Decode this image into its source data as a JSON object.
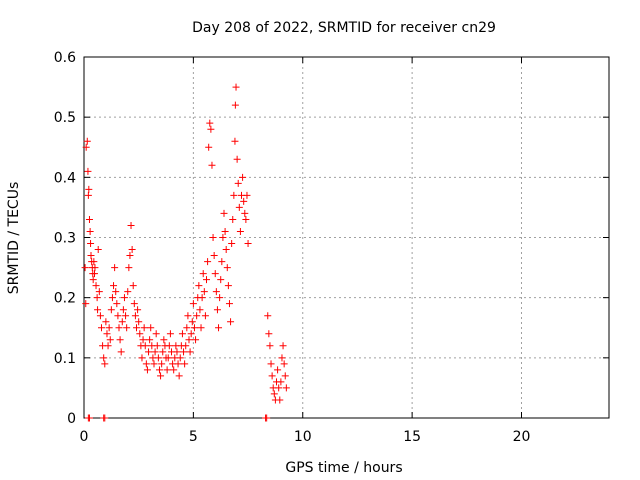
{
  "chart_data": {
    "type": "scatter",
    "title": "Day 208 of 2022, SRMTID for receiver cn29",
    "xlabel": "GPS time / hours",
    "ylabel": "SRMTID / TECUs",
    "xlim": [
      0,
      24
    ],
    "ylim": [
      0,
      0.6
    ],
    "x_ticks": [
      0,
      5,
      10,
      15,
      20
    ],
    "y_ticks": [
      0,
      0.1,
      0.2,
      0.3,
      0.4,
      0.5,
      0.6
    ],
    "x_tick_labels": [
      "0",
      "5",
      "10",
      "15",
      "20"
    ],
    "y_tick_labels": [
      "0",
      "0.1",
      "0.2",
      "0.3",
      "0.4",
      "0.5",
      "0.6"
    ],
    "grid": true,
    "marker": "+",
    "color": "#ff0000",
    "points": [
      [
        0.05,
        0.25
      ],
      [
        0.08,
        0.19
      ],
      [
        0.1,
        0.45
      ],
      [
        0.15,
        0.46
      ],
      [
        0.18,
        0.41
      ],
      [
        0.2,
        0.37
      ],
      [
        0.22,
        0.38
      ],
      [
        0.25,
        0.33
      ],
      [
        0.28,
        0.31
      ],
      [
        0.3,
        0.29
      ],
      [
        0.32,
        0.27
      ],
      [
        0.35,
        0.26
      ],
      [
        0.38,
        0.25
      ],
      [
        0.4,
        0.24
      ],
      [
        0.42,
        0.23
      ],
      [
        0.45,
        0.26
      ],
      [
        0.48,
        0.24
      ],
      [
        0.5,
        0.25
      ],
      [
        0.55,
        0.22
      ],
      [
        0.6,
        0.2
      ],
      [
        0.62,
        0.18
      ],
      [
        0.65,
        0.28
      ],
      [
        0.7,
        0.21
      ],
      [
        0.75,
        0.17
      ],
      [
        0.8,
        0.15
      ],
      [
        0.85,
        0.12
      ],
      [
        0.9,
        0.1
      ],
      [
        0.95,
        0.09
      ],
      [
        1.0,
        0.16
      ],
      [
        1.05,
        0.14
      ],
      [
        1.1,
        0.12
      ],
      [
        1.15,
        0.15
      ],
      [
        1.2,
        0.13
      ],
      [
        1.25,
        0.18
      ],
      [
        1.3,
        0.2
      ],
      [
        1.35,
        0.22
      ],
      [
        1.4,
        0.25
      ],
      [
        1.45,
        0.21
      ],
      [
        1.5,
        0.19
      ],
      [
        1.55,
        0.17
      ],
      [
        1.6,
        0.15
      ],
      [
        1.65,
        0.13
      ],
      [
        1.7,
        0.11
      ],
      [
        1.75,
        0.16
      ],
      [
        1.8,
        0.18
      ],
      [
        1.85,
        0.2
      ],
      [
        1.9,
        0.17
      ],
      [
        1.95,
        0.15
      ],
      [
        2.0,
        0.21
      ],
      [
        2.05,
        0.25
      ],
      [
        2.1,
        0.27
      ],
      [
        2.15,
        0.32
      ],
      [
        2.2,
        0.28
      ],
      [
        2.25,
        0.22
      ],
      [
        2.3,
        0.19
      ],
      [
        2.35,
        0.17
      ],
      [
        2.4,
        0.15
      ],
      [
        2.45,
        0.18
      ],
      [
        2.5,
        0.16
      ],
      [
        2.55,
        0.14
      ],
      [
        2.6,
        0.12
      ],
      [
        2.65,
        0.1
      ],
      [
        2.7,
        0.13
      ],
      [
        2.75,
        0.15
      ],
      [
        2.8,
        0.12
      ],
      [
        2.85,
        0.09
      ],
      [
        2.9,
        0.08
      ],
      [
        2.95,
        0.11
      ],
      [
        3.0,
        0.13
      ],
      [
        3.05,
        0.15
      ],
      [
        3.1,
        0.12
      ],
      [
        3.15,
        0.1
      ],
      [
        3.2,
        0.09
      ],
      [
        3.25,
        0.11
      ],
      [
        3.3,
        0.14
      ],
      [
        3.35,
        0.12
      ],
      [
        3.4,
        0.1
      ],
      [
        3.45,
        0.08
      ],
      [
        3.5,
        0.07
      ],
      [
        3.55,
        0.09
      ],
      [
        3.6,
        0.11
      ],
      [
        3.65,
        0.13
      ],
      [
        3.7,
        0.12
      ],
      [
        3.75,
        0.1
      ],
      [
        3.8,
        0.08
      ],
      [
        3.85,
        0.1
      ],
      [
        3.9,
        0.12
      ],
      [
        3.95,
        0.14
      ],
      [
        4.0,
        0.11
      ],
      [
        4.05,
        0.09
      ],
      [
        4.1,
        0.08
      ],
      [
        4.15,
        0.1
      ],
      [
        4.2,
        0.12
      ],
      [
        4.25,
        0.11
      ],
      [
        4.3,
        0.09
      ],
      [
        4.35,
        0.07
      ],
      [
        4.4,
        0.1
      ],
      [
        4.45,
        0.12
      ],
      [
        4.5,
        0.14
      ],
      [
        4.55,
        0.11
      ],
      [
        4.6,
        0.09
      ],
      [
        4.65,
        0.12
      ],
      [
        4.7,
        0.15
      ],
      [
        4.75,
        0.17
      ],
      [
        4.8,
        0.13
      ],
      [
        4.85,
        0.11
      ],
      [
        4.9,
        0.14
      ],
      [
        4.95,
        0.16
      ],
      [
        5.0,
        0.19
      ],
      [
        5.05,
        0.15
      ],
      [
        5.1,
        0.13
      ],
      [
        5.15,
        0.17
      ],
      [
        5.2,
        0.2
      ],
      [
        5.25,
        0.22
      ],
      [
        5.3,
        0.18
      ],
      [
        5.35,
        0.15
      ],
      [
        5.4,
        0.2
      ],
      [
        5.45,
        0.24
      ],
      [
        5.5,
        0.21
      ],
      [
        5.55,
        0.17
      ],
      [
        5.6,
        0.23
      ],
      [
        5.65,
        0.26
      ],
      [
        5.7,
        0.45
      ],
      [
        5.75,
        0.49
      ],
      [
        5.8,
        0.48
      ],
      [
        5.85,
        0.42
      ],
      [
        5.9,
        0.3
      ],
      [
        5.95,
        0.27
      ],
      [
        6.0,
        0.24
      ],
      [
        6.05,
        0.21
      ],
      [
        6.1,
        0.18
      ],
      [
        6.15,
        0.15
      ],
      [
        6.2,
        0.2
      ],
      [
        6.25,
        0.23
      ],
      [
        6.3,
        0.26
      ],
      [
        6.35,
        0.3
      ],
      [
        6.4,
        0.34
      ],
      [
        6.45,
        0.31
      ],
      [
        6.5,
        0.28
      ],
      [
        6.55,
        0.25
      ],
      [
        6.6,
        0.22
      ],
      [
        6.65,
        0.19
      ],
      [
        6.7,
        0.16
      ],
      [
        6.75,
        0.29
      ],
      [
        6.8,
        0.33
      ],
      [
        6.85,
        0.37
      ],
      [
        6.9,
        0.46
      ],
      [
        6.92,
        0.52
      ],
      [
        6.95,
        0.55
      ],
      [
        7.0,
        0.43
      ],
      [
        7.05,
        0.39
      ],
      [
        7.1,
        0.35
      ],
      [
        7.15,
        0.31
      ],
      [
        7.2,
        0.37
      ],
      [
        7.25,
        0.4
      ],
      [
        7.3,
        0.36
      ],
      [
        7.35,
        0.34
      ],
      [
        7.4,
        0.33
      ],
      [
        7.45,
        0.37
      ],
      [
        7.5,
        0.29
      ],
      [
        0.2,
        0.0
      ],
      [
        0.25,
        0.0
      ],
      [
        0.9,
        0.0
      ],
      [
        0.95,
        0.0
      ],
      [
        8.3,
        0.0
      ],
      [
        8.35,
        0.0
      ],
      [
        8.4,
        0.17
      ],
      [
        8.45,
        0.14
      ],
      [
        8.5,
        0.12
      ],
      [
        8.55,
        0.09
      ],
      [
        8.6,
        0.07
      ],
      [
        8.65,
        0.05
      ],
      [
        8.7,
        0.04
      ],
      [
        8.75,
        0.03
      ],
      [
        8.8,
        0.06
      ],
      [
        8.85,
        0.08
      ],
      [
        8.9,
        0.05
      ],
      [
        8.95,
        0.03
      ],
      [
        9.0,
        0.06
      ],
      [
        9.05,
        0.1
      ],
      [
        9.1,
        0.12
      ],
      [
        9.15,
        0.09
      ],
      [
        9.2,
        0.07
      ],
      [
        9.25,
        0.05
      ]
    ]
  }
}
